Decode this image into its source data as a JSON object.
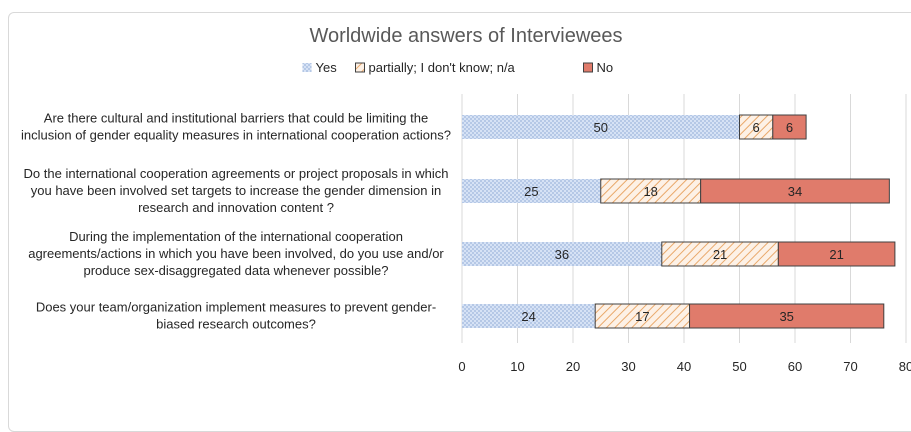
{
  "chart_data": {
    "type": "bar",
    "orientation": "horizontal",
    "stacked": true,
    "title": "Worldwide answers of Interviewees",
    "categories": [
      [
        "Are there cultural and institutional barriers that could be limiting the",
        "inclusion of gender equality measures in international cooperation actions?"
      ],
      [
        "Do the international cooperation agreements or project proposals in which",
        "you have been involved set targets to increase the gender dimension in",
        "research and innovation content ?"
      ],
      [
        "During the implementation of the international cooperation",
        "agreements/actions in which you have been involved, do you use and/or",
        "produce sex-disaggregated data whenever possible?"
      ],
      [
        "Does your team/organization implement measures to prevent gender-",
        "biased research outcomes?"
      ]
    ],
    "series": [
      {
        "name": "Yes",
        "values": [
          50,
          25,
          36,
          24
        ],
        "color": "#b4c7e7",
        "pattern": "dots"
      },
      {
        "name": "partially; I don't know; n/a",
        "values": [
          6,
          18,
          21,
          17
        ],
        "color": "#f4b183",
        "pattern": "hatch"
      },
      {
        "name": "No",
        "values": [
          6,
          34,
          21,
          35
        ],
        "color": "#e07b6b",
        "pattern": "solid"
      }
    ],
    "xlim": [
      0,
      80
    ],
    "xticks": [
      "0",
      "10",
      "20",
      "30",
      "40",
      "50",
      "60",
      "70",
      "80"
    ],
    "grid": true,
    "legend": "top"
  }
}
